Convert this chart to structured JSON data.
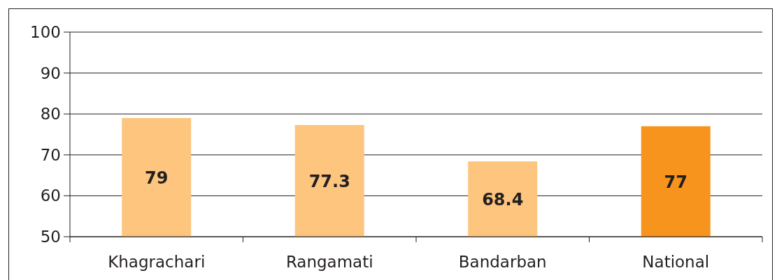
{
  "chart_data": {
    "type": "bar",
    "categories": [
      "Khagrachari",
      "Rangamati",
      "Bandarban",
      "National"
    ],
    "values": [
      79,
      77.3,
      68.4,
      77
    ],
    "colors": [
      "#fdc57e",
      "#fdc57e",
      "#fdc57e",
      "#f7941d"
    ],
    "ylim": [
      50,
      100
    ],
    "yticks": [
      50,
      60,
      70,
      80,
      90,
      100
    ],
    "grid": "y",
    "data_labels": true
  }
}
